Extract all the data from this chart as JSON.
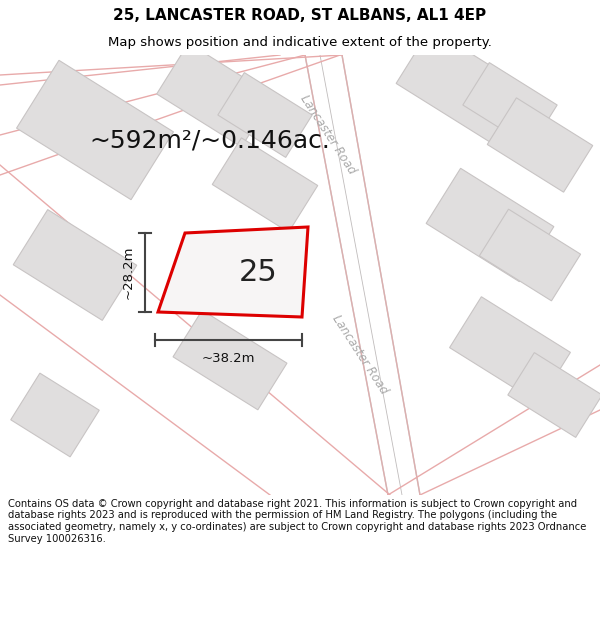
{
  "title_line1": "25, LANCASTER ROAD, ST ALBANS, AL1 4EP",
  "title_line2": "Map shows position and indicative extent of the property.",
  "area_text": "~592m²/~0.146ac.",
  "property_number": "25",
  "dim_width": "~38.2m",
  "dim_height": "~28.2m",
  "road_label_upper": "Lancaster Road",
  "road_label_lower": "Lancaster Road",
  "footer_text": "Contains OS data © Crown copyright and database right 2021. This information is subject to Crown copyright and database rights 2023 and is reproduced with the permission of HM Land Registry. The polygons (including the associated geometry, namely x, y co-ordinates) are subject to Crown copyright and database rights 2023 Ordnance Survey 100026316.",
  "map_bg": "#f7f5f5",
  "road_bg": "#ffffff",
  "building_fill": "#e0dede",
  "building_edge": "#c8c4c4",
  "road_line_color": "#e8aaaa",
  "property_fill": "#f7f5f5",
  "property_edge": "#dd0000",
  "dim_line_color": "#444444",
  "title_fontsize": 11,
  "subtitle_fontsize": 9.5,
  "area_fontsize": 18,
  "number_fontsize": 22,
  "footer_fontsize": 7.2,
  "road_label_fontsize": 8.5,
  "dim_fontsize": 9.5
}
